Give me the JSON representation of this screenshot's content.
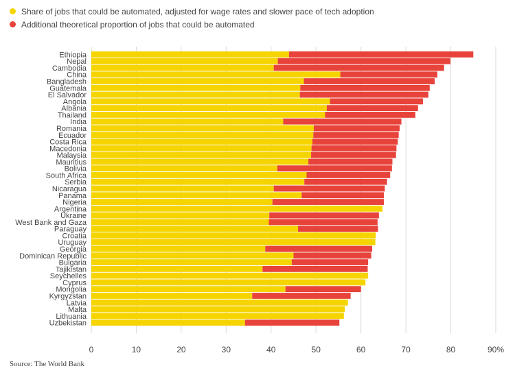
{
  "chart_data": {
    "type": "bar",
    "orientation": "horizontal",
    "stacked": true,
    "title": "",
    "xlabel": "",
    "ylabel": "",
    "xlim": [
      0,
      90
    ],
    "xticks": [
      "0",
      "10",
      "20",
      "30",
      "40",
      "50",
      "60",
      "70",
      "80",
      "90%"
    ],
    "categories": [
      "Ethiopia",
      "Nepal",
      "Cambodia",
      "China",
      "Bangladesh",
      "Guatemala",
      "El Salvador",
      "Angola",
      "Albania",
      "Thailand",
      "India",
      "Romania",
      "Ecuador",
      "Costa Rica",
      "Macedonia",
      "Malaysia",
      "Mauritius",
      "Bolivia",
      "South Africa",
      "Serbia",
      "Nicaragua",
      "Panama",
      "Nigeria",
      "Argentina",
      "Ukraine",
      "West Bank and Gaza",
      "Paraguay",
      "Croatia",
      "Uruguay",
      "Georgia",
      "Dominican Republic",
      "Bulgaria",
      "Tajikistan",
      "Seychelles",
      "Cyprus",
      "Mongolia",
      "Kyrgyzstan",
      "Latvia",
      "Malta",
      "Lithuania",
      "Uzbekistan"
    ],
    "series": [
      {
        "name": "Share of jobs that could be automated, adjusted for wage rates and slower pace of tech adoption",
        "color": "#F5D400",
        "values": [
          44.0,
          41.5,
          40.6,
          55.4,
          47.3,
          46.5,
          46.4,
          53.1,
          52.4,
          52.0,
          42.7,
          49.5,
          49.4,
          49.2,
          49.0,
          48.9,
          48.3,
          41.4,
          47.9,
          47.4,
          40.6,
          46.8,
          40.3,
          64.8,
          39.6,
          39.5,
          46.0,
          63.3,
          63.2,
          38.7,
          45.0,
          44.6,
          38.1,
          61.6,
          61.0,
          43.2,
          35.8,
          57.1,
          56.4,
          56.2,
          34.2
        ]
      },
      {
        "name": "Additional theoretical proportion of jobs that could be automated",
        "color": "#E8433B",
        "values": [
          41.0,
          38.4,
          37.9,
          21.6,
          29.1,
          28.8,
          28.6,
          20.7,
          20.3,
          20.1,
          26.3,
          19.1,
          19.0,
          19.0,
          18.9,
          18.9,
          18.7,
          25.5,
          18.6,
          18.4,
          24.7,
          18.3,
          24.8,
          0.0,
          24.4,
          24.2,
          17.8,
          0.0,
          0.0,
          23.8,
          17.3,
          17.0,
          23.4,
          0.0,
          0.0,
          16.8,
          21.9,
          0.0,
          0.0,
          0.0,
          21.0
        ]
      }
    ],
    "legend_position": "top-left",
    "grid": "vertical"
  },
  "source": "Source: The World Bank"
}
